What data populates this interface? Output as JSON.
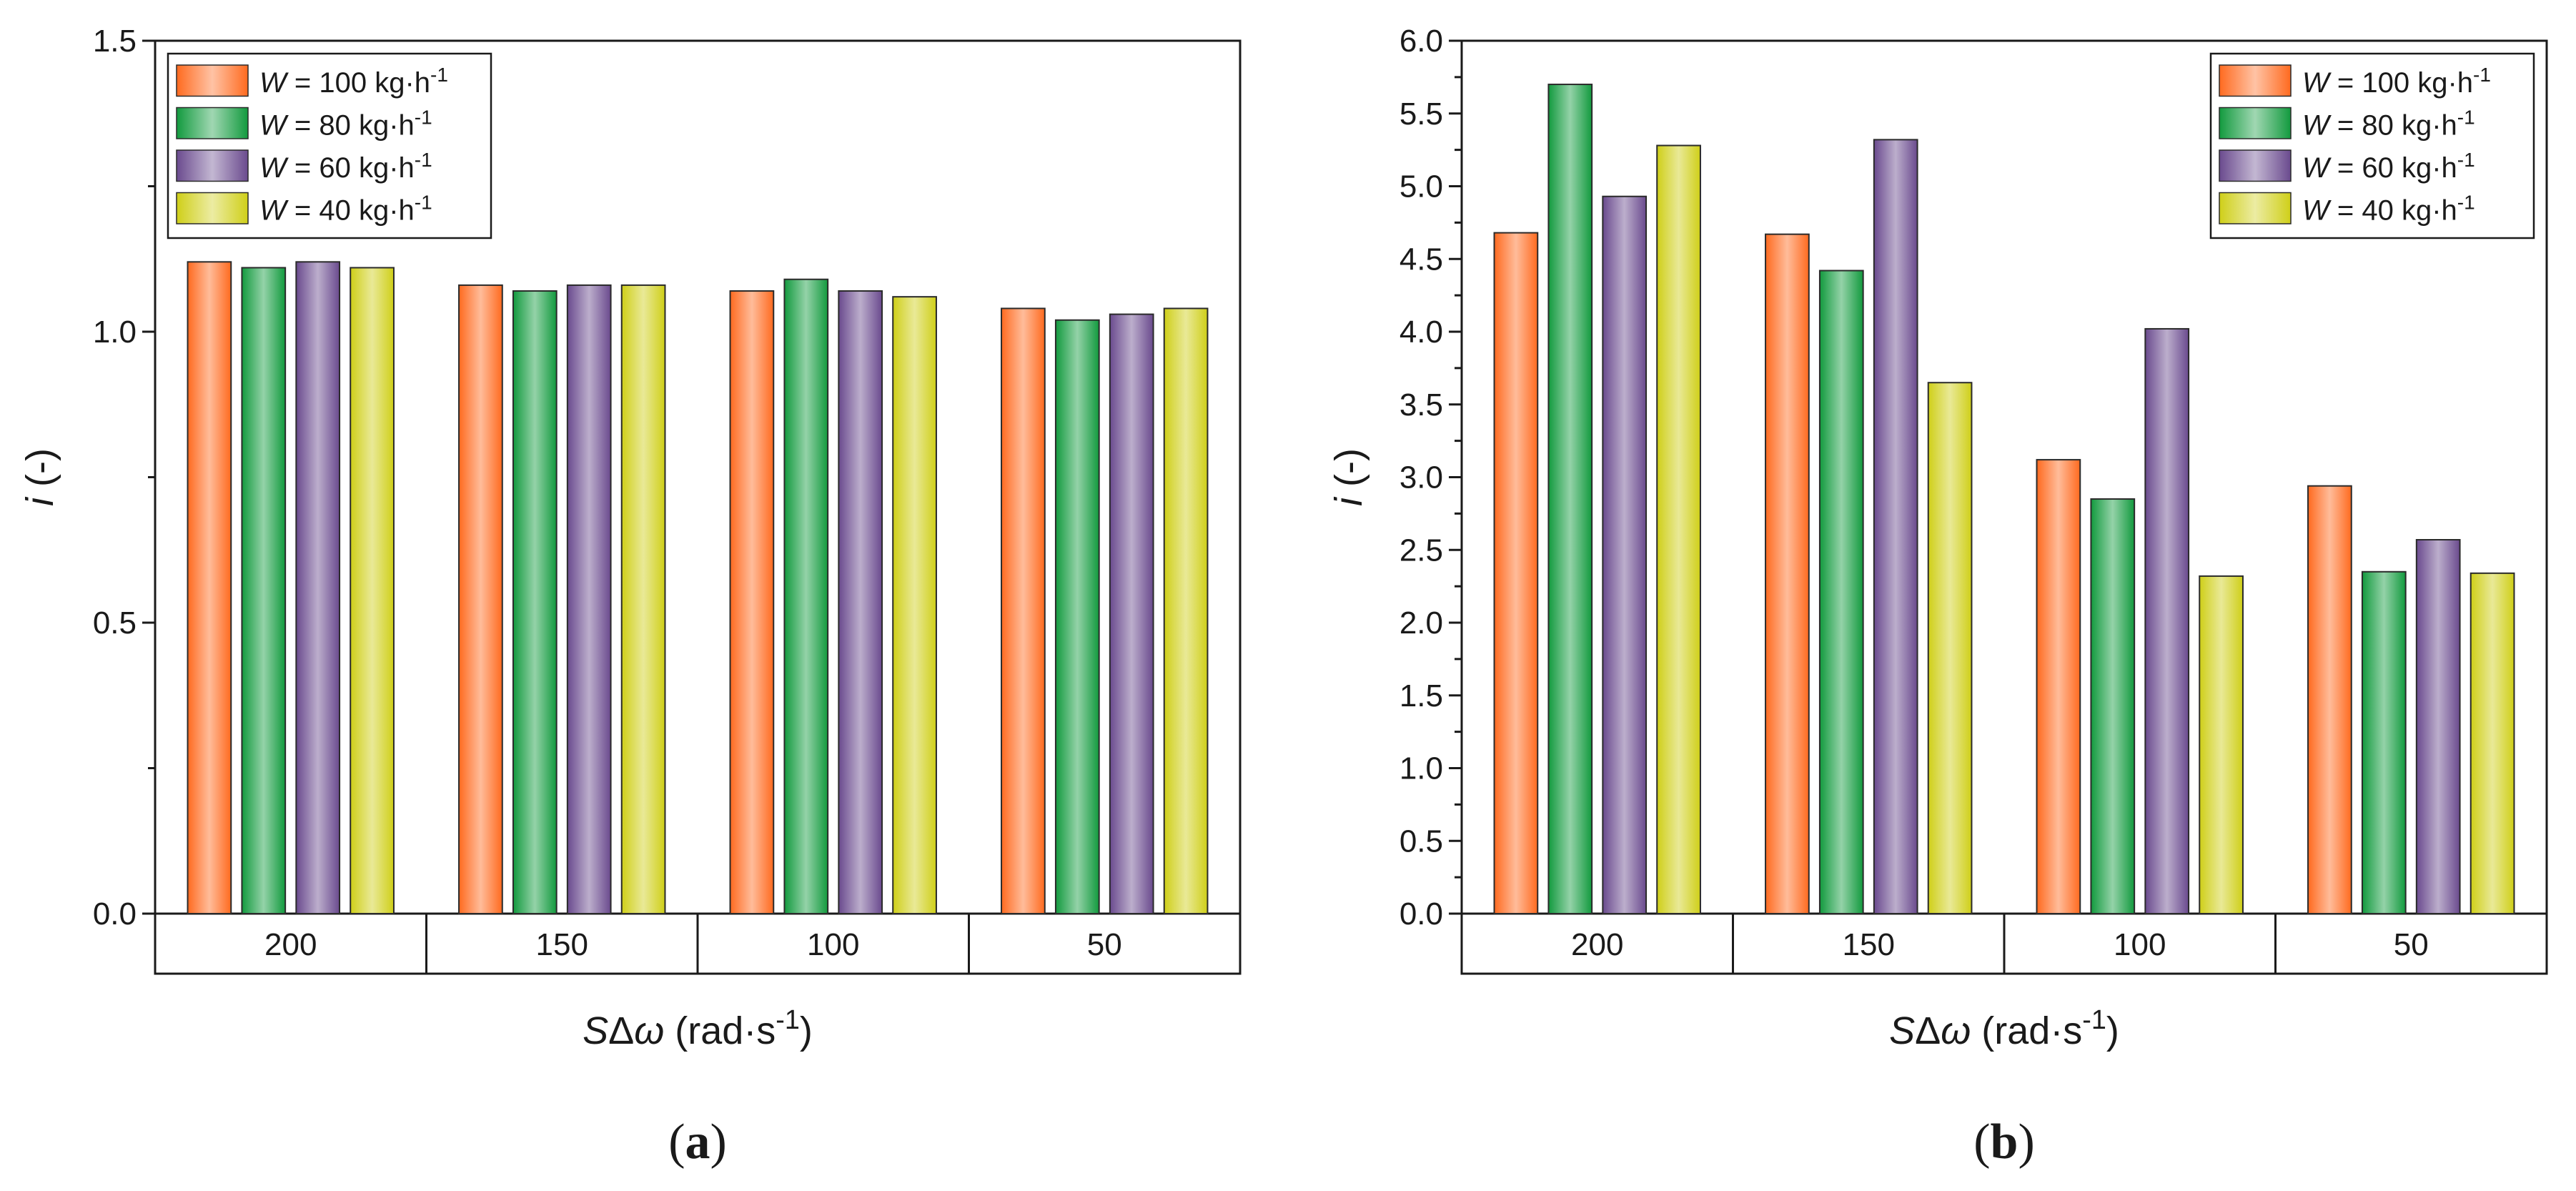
{
  "colors": {
    "W100": "#ff6a1f",
    "W80": "#129a3e",
    "W60": "#6a4a8e",
    "W40": "#cfcf18",
    "axis": "#1a1a1a"
  },
  "chart_data": [
    {
      "type": "bar",
      "panel_label": "(a)",
      "categories": [
        "200",
        "150",
        "100",
        "50"
      ],
      "series": [
        {
          "name": "W = 100 kg·h⁻¹",
          "values": [
            1.12,
            1.08,
            1.07,
            1.04
          ]
        },
        {
          "name": "W = 80 kg·h⁻¹",
          "values": [
            1.11,
            1.07,
            1.09,
            1.02
          ]
        },
        {
          "name": "W = 60 kg·h⁻¹",
          "values": [
            1.12,
            1.08,
            1.07,
            1.03
          ]
        },
        {
          "name": "W = 40 kg·h⁻¹",
          "values": [
            1.11,
            1.08,
            1.06,
            1.04
          ]
        }
      ],
      "xlabel": "SΔω (rad·s⁻¹)",
      "ylabel": "i (-)",
      "ylim": [
        0,
        1.5
      ],
      "yticks": [
        "0.0",
        "0.5",
        "1.0",
        "1.5"
      ],
      "legend_position": "top-left"
    },
    {
      "type": "bar",
      "panel_label": "(b)",
      "categories": [
        "200",
        "150",
        "100",
        "50"
      ],
      "series": [
        {
          "name": "W = 100 kg·h⁻¹",
          "values": [
            4.68,
            4.67,
            3.12,
            2.94
          ]
        },
        {
          "name": "W = 80 kg·h⁻¹",
          "values": [
            5.7,
            4.42,
            2.85,
            2.35
          ]
        },
        {
          "name": "W = 60 kg·h⁻¹",
          "values": [
            4.93,
            5.32,
            4.02,
            2.57
          ]
        },
        {
          "name": "W = 40 kg·h⁻¹",
          "values": [
            5.28,
            3.65,
            2.32,
            2.34
          ]
        }
      ],
      "xlabel": "SΔω (rad·s⁻¹)",
      "ylabel": "i (-)",
      "ylim": [
        0,
        6.0
      ],
      "yticks": [
        "0.0",
        "0.5",
        "1.0",
        "1.5",
        "2.0",
        "2.5",
        "3.0",
        "3.5",
        "4.0",
        "4.5",
        "5.0",
        "5.5",
        "6.0"
      ],
      "legend_position": "top-right"
    }
  ]
}
